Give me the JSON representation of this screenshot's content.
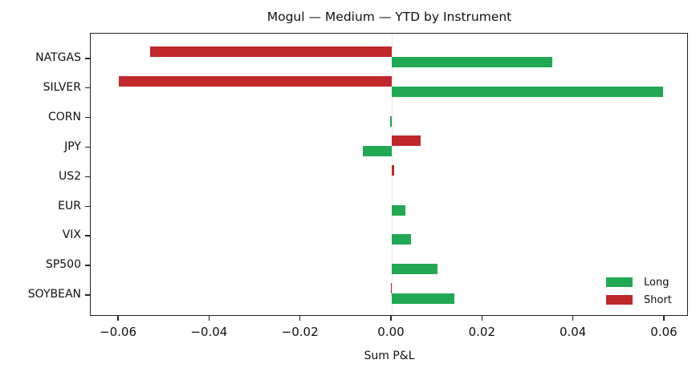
{
  "chart_data": {
    "type": "bar",
    "orientation": "horizontal",
    "title": "Mogul — Medium — YTD by Instrument",
    "xlabel": "Sum P&L",
    "ylabel": "",
    "xlim": [
      -0.066,
      0.066
    ],
    "xticks": [
      "−0.06",
      "−0.04",
      "−0.02",
      "0.00",
      "0.02",
      "0.04",
      "0.06"
    ],
    "xtick_values": [
      -0.06,
      -0.04,
      -0.02,
      0.0,
      0.02,
      0.04,
      0.06
    ],
    "categories": [
      "NATGAS",
      "SILVER",
      "CORN",
      "JPY",
      "US2",
      "EUR",
      "VIX",
      "SP500",
      "SOYBEAN"
    ],
    "series": [
      {
        "name": "Long",
        "color": "#22a853",
        "values": [
          0.0353,
          0.0596,
          -0.0003,
          -0.0064,
          0.0,
          0.003,
          0.0042,
          0.0101,
          0.0138
        ]
      },
      {
        "name": "Short",
        "color": "#c0282b",
        "values": [
          -0.0531,
          -0.06,
          0.0,
          0.0064,
          0.0006,
          0.0,
          0.0,
          0.0,
          -0.0002
        ]
      }
    ],
    "legend": {
      "position": "lower right",
      "entries": [
        "Long",
        "Short"
      ]
    },
    "grid": false
  }
}
